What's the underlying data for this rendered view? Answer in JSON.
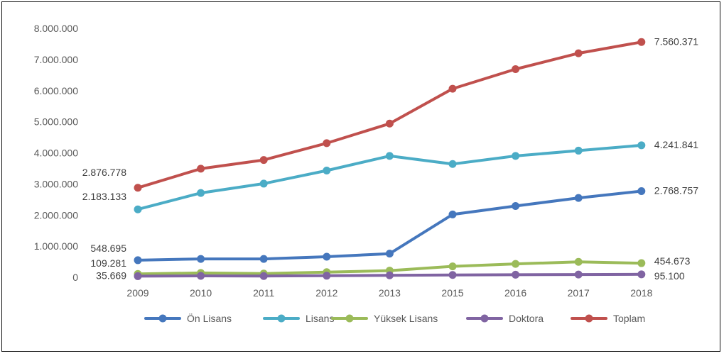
{
  "chart_data": {
    "type": "line",
    "title": "",
    "xlabel": "",
    "ylabel": "",
    "categories": [
      "2009",
      "2010",
      "2011",
      "2012",
      "2013",
      "2015",
      "2016",
      "2017",
      "2018"
    ],
    "y_ticks": [
      "0",
      "1.000.000",
      "2.000.000",
      "3.000.000",
      "4.000.000",
      "5.000.000",
      "6.000.000",
      "7.000.000",
      "8.000.000"
    ],
    "ylim": [
      0,
      8000000
    ],
    "grid": false,
    "legend_position": "bottom",
    "series": [
      {
        "name": "Ön Lisans",
        "color": "#4577bd",
        "values": [
          548695,
          590000,
          590000,
          660000,
          760000,
          2020000,
          2290000,
          2550000,
          2768757
        ],
        "first_label": "548.695",
        "last_label": "2.768.757"
      },
      {
        "name": "Lisans",
        "color": "#4bacc6",
        "values": [
          2183133,
          2710000,
          3010000,
          3430000,
          3900000,
          3640000,
          3900000,
          4070000,
          4241841
        ],
        "first_label": "2.183.133",
        "last_label": "4.241.841"
      },
      {
        "name": "Yüksek Lisans",
        "color": "#9bbb59",
        "values": [
          109281,
          140000,
          120000,
          165000,
          215000,
          350000,
          430000,
          495000,
          454673
        ],
        "first_label": "109.281",
        "last_label": "454.673"
      },
      {
        "name": "Doktora",
        "color": "#8064a2",
        "values": [
          35669,
          45000,
          40000,
          50000,
          62000,
          75000,
          82000,
          88000,
          95100
        ],
        "first_label": "35.669",
        "last_label": "95.100"
      },
      {
        "name": "Toplam",
        "color": "#c0504d",
        "values": [
          2876778,
          3490000,
          3770000,
          4310000,
          4940000,
          6060000,
          6690000,
          7200000,
          7560371
        ],
        "first_label": "2.876.778",
        "last_label": "7.560.371"
      }
    ]
  }
}
